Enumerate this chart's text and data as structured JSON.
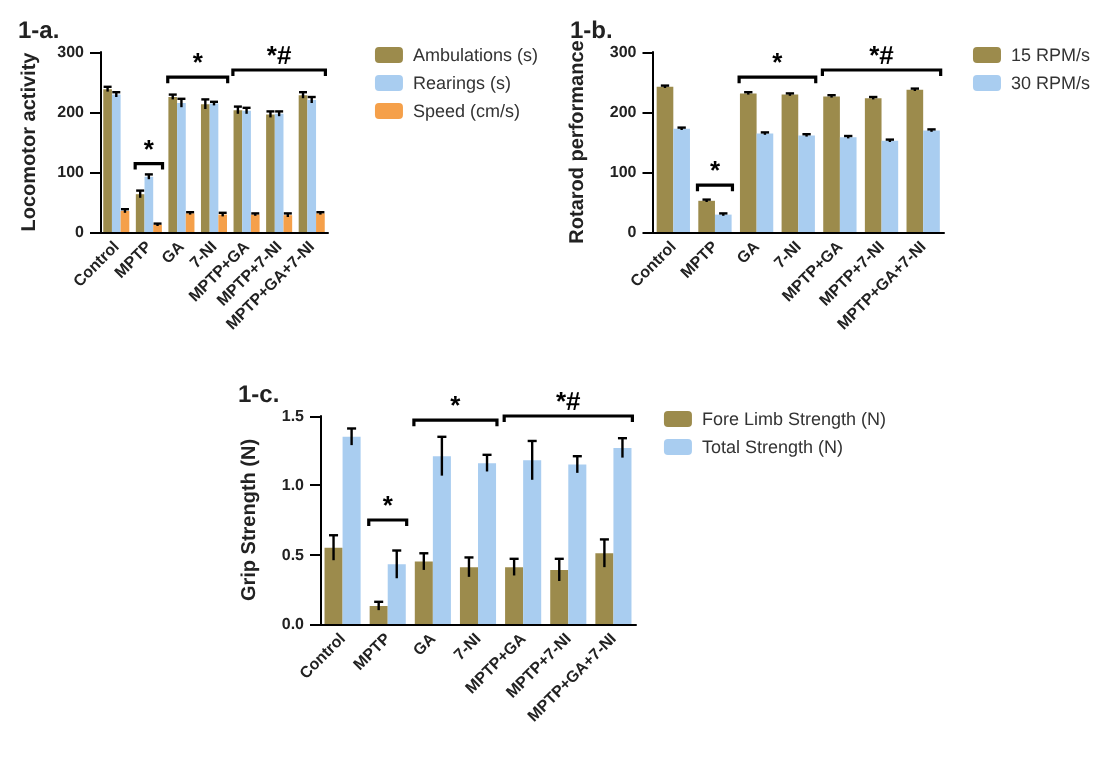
{
  "chart_data": [
    {
      "type": "bar",
      "title": "1-a.",
      "ylabel": "Locomotor activity",
      "categories": [
        "Control",
        "MPTP",
        "GA",
        "7-NI",
        "MPTP+GA",
        "MPTP+7-NI",
        "MPTP+GA+7-NI"
      ],
      "series": [
        {
          "name": "Ambulations (s)",
          "color": "#9c8b4c",
          "values": [
            238,
            63,
            225,
            213,
            203,
            196,
            228
          ],
          "errors": [
            4,
            6,
            4,
            8,
            6,
            5,
            5
          ]
        },
        {
          "name": "Rearings (s)",
          "color": "#a9cdf0",
          "values": [
            229,
            92,
            215,
            214,
            202,
            197,
            220
          ],
          "errors": [
            4,
            4,
            7,
            3,
            5,
            4,
            5
          ]
        },
        {
          "name": "Speed (cm/s)",
          "color": "#f5a04a",
          "values": [
            35,
            12,
            31,
            29,
            29,
            28,
            31
          ],
          "errors": [
            3,
            2,
            2,
            3,
            2,
            3,
            2
          ]
        }
      ],
      "ylim": [
        0,
        300
      ],
      "yticks": [
        0,
        100,
        200,
        300
      ],
      "grid": false,
      "legend": "top right",
      "annotations": [
        "*",
        "*",
        "*#"
      ]
    },
    {
      "type": "bar",
      "title": "1-b.",
      "ylabel": "Rotarod performance",
      "categories": [
        "Control",
        "MPTP",
        "GA",
        "7-NI",
        "MPTP+GA",
        "MPTP+7-NI",
        "MPTP+GA+7-NI"
      ],
      "series": [
        {
          "name": "15 RPM/s",
          "color": "#9c8b4c",
          "values": [
            242,
            52,
            231,
            229,
            226,
            223,
            237
          ],
          "errors": [
            2,
            2,
            2,
            2,
            2,
            2,
            2
          ]
        },
        {
          "name": "30 RPM/s",
          "color": "#a9cdf0",
          "values": [
            172,
            29,
            164,
            161,
            158,
            152,
            169
          ],
          "errors": [
            2,
            2,
            2,
            2,
            2,
            2,
            2
          ]
        }
      ],
      "ylim": [
        0,
        300
      ],
      "yticks": [
        0,
        100,
        200,
        300
      ],
      "grid": false,
      "legend": "top right",
      "annotations": [
        "*",
        "*",
        "*#"
      ]
    },
    {
      "type": "bar",
      "title": "1-c.",
      "ylabel": "Grip Strength (N)",
      "categories": [
        "Control",
        "MPTP",
        "GA",
        "7-NI",
        "MPTP+GA",
        "MPTP+7-NI",
        "MPTP+GA+7-NI"
      ],
      "series": [
        {
          "name": "Fore Limb Strength (N)",
          "color": "#9c8b4c",
          "values": [
            0.55,
            0.13,
            0.45,
            0.41,
            0.41,
            0.39,
            0.51
          ],
          "errors": [
            0.09,
            0.03,
            0.06,
            0.07,
            0.06,
            0.08,
            0.1
          ]
        },
        {
          "name": "Total Strength (N)",
          "color": "#a9cdf0",
          "values": [
            1.35,
            0.43,
            1.21,
            1.16,
            1.18,
            1.15,
            1.27
          ],
          "errors": [
            0.06,
            0.1,
            0.14,
            0.06,
            0.14,
            0.06,
            0.07
          ]
        }
      ],
      "ylim": [
        0,
        1.5
      ],
      "yticks": [
        {
          "value": 0,
          "label": "0.0"
        },
        {
          "value": 0.5,
          "label": "0.5"
        },
        {
          "value": 1,
          "label": "1.0"
        },
        {
          "value": 1.5,
          "label": "1.5"
        }
      ],
      "grid": false,
      "legend": "top right",
      "annotations": [
        "*",
        "*",
        "*#"
      ]
    }
  ]
}
